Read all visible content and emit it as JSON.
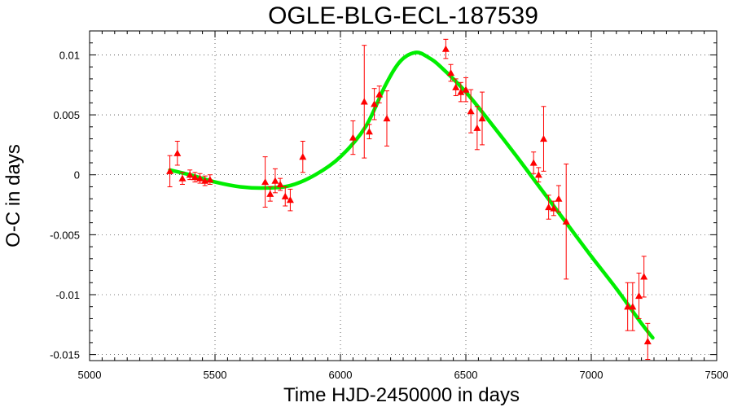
{
  "chart_data": {
    "type": "scatter",
    "title": "OGLE-BLG-ECL-187539",
    "xlabel": "Time HJD-2450000 in days",
    "ylabel": "O-C in days",
    "xlim": [
      5000,
      7500
    ],
    "ylim": [
      -0.0155,
      0.012
    ],
    "xticks": [
      5000,
      5500,
      6000,
      6500,
      7000,
      7500
    ],
    "xtick_labels": [
      "5000",
      "5500",
      "6000",
      "6500",
      "7000",
      "7500"
    ],
    "yticks": [
      0.01,
      0.005,
      0,
      -0.005,
      -0.01,
      -0.015
    ],
    "ytick_labels": [
      "0.01",
      "0.005",
      "0",
      "-0.005",
      "-0.01",
      "-0.015"
    ],
    "grid": true,
    "series": [
      {
        "kind": "observations",
        "color": "#ff0000",
        "marker": "triangle",
        "points": [
          {
            "x": 5320,
            "y": 0.0003,
            "err": 0.0013
          },
          {
            "x": 5350,
            "y": 0.0018,
            "err": 0.001
          },
          {
            "x": 5370,
            "y": -0.0003,
            "err": 0.0005
          },
          {
            "x": 5400,
            "y": 0.0,
            "err": 0.0004
          },
          {
            "x": 5420,
            "y": -0.0002,
            "err": 0.0004
          },
          {
            "x": 5440,
            "y": -0.0003,
            "err": 0.0004
          },
          {
            "x": 5460,
            "y": -0.0005,
            "err": 0.0004
          },
          {
            "x": 5480,
            "y": -0.0004,
            "err": 0.0004
          },
          {
            "x": 5700,
            "y": -0.0006,
            "err": 0.0021
          },
          {
            "x": 5720,
            "y": -0.0016,
            "err": 0.0006
          },
          {
            "x": 5740,
            "y": -0.0005,
            "err": 0.001
          },
          {
            "x": 5760,
            "y": -0.0008,
            "err": 0.0005
          },
          {
            "x": 5780,
            "y": -0.0018,
            "err": 0.0008
          },
          {
            "x": 5800,
            "y": -0.0021,
            "err": 0.0009
          },
          {
            "x": 5850,
            "y": 0.0015,
            "err": 0.0013
          },
          {
            "x": 6050,
            "y": 0.0031,
            "err": 0.0014
          },
          {
            "x": 6095,
            "y": 0.0061,
            "err": 0.0047
          },
          {
            "x": 6115,
            "y": 0.0036,
            "err": 0.0006
          },
          {
            "x": 6135,
            "y": 0.0059,
            "err": 0.0013
          },
          {
            "x": 6155,
            "y": 0.0067,
            "err": 0.0007
          },
          {
            "x": 6185,
            "y": 0.0047,
            "err": 0.0023
          },
          {
            "x": 6420,
            "y": 0.0105,
            "err": 0.0008
          },
          {
            "x": 6440,
            "y": 0.0085,
            "err": 0.0007
          },
          {
            "x": 6460,
            "y": 0.0073,
            "err": 0.0007
          },
          {
            "x": 6480,
            "y": 0.0069,
            "err": 0.0008
          },
          {
            "x": 6500,
            "y": 0.0071,
            "err": 0.001
          },
          {
            "x": 6520,
            "y": 0.0053,
            "err": 0.0018
          },
          {
            "x": 6545,
            "y": 0.0039,
            "err": 0.0018
          },
          {
            "x": 6565,
            "y": 0.0047,
            "err": 0.0022
          },
          {
            "x": 6770,
            "y": 0.001,
            "err": 0.0009
          },
          {
            "x": 6790,
            "y": 0.0,
            "err": 0.0006
          },
          {
            "x": 6810,
            "y": 0.003,
            "err": 0.0027
          },
          {
            "x": 6830,
            "y": -0.0027,
            "err": 0.001
          },
          {
            "x": 6850,
            "y": -0.0028,
            "err": 0.0006
          },
          {
            "x": 6870,
            "y": -0.002,
            "err": 0.0011
          },
          {
            "x": 6900,
            "y": -0.0039,
            "err": 0.0048
          },
          {
            "x": 7145,
            "y": -0.011,
            "err": 0.002
          },
          {
            "x": 7165,
            "y": -0.011,
            "err": 0.002
          },
          {
            "x": 7190,
            "y": -0.0101,
            "err": 0.0019
          },
          {
            "x": 7210,
            "y": -0.0085,
            "err": 0.0017
          },
          {
            "x": 7225,
            "y": -0.0139,
            "err": 0.0015
          }
        ]
      },
      {
        "kind": "fit",
        "color": "#00ee00",
        "points": [
          {
            "x": 5320,
            "y": 0.0004
          },
          {
            "x": 5400,
            "y": 0.0
          },
          {
            "x": 5500,
            "y": -0.0006
          },
          {
            "x": 5600,
            "y": -0.001
          },
          {
            "x": 5700,
            "y": -0.0011
          },
          {
            "x": 5800,
            "y": -0.0009
          },
          {
            "x": 5900,
            "y": 0.0
          },
          {
            "x": 6000,
            "y": 0.0015
          },
          {
            "x": 6100,
            "y": 0.004
          },
          {
            "x": 6180,
            "y": 0.0075
          },
          {
            "x": 6240,
            "y": 0.0095
          },
          {
            "x": 6300,
            "y": 0.0102
          },
          {
            "x": 6350,
            "y": 0.0098
          },
          {
            "x": 6400,
            "y": 0.009
          },
          {
            "x": 6500,
            "y": 0.0069
          },
          {
            "x": 6600,
            "y": 0.0043
          },
          {
            "x": 6700,
            "y": 0.0016
          },
          {
            "x": 6800,
            "y": -0.0012
          },
          {
            "x": 6900,
            "y": -0.004
          },
          {
            "x": 7000,
            "y": -0.0068
          },
          {
            "x": 7100,
            "y": -0.0095
          },
          {
            "x": 7200,
            "y": -0.0124
          },
          {
            "x": 7245,
            "y": -0.0136
          }
        ]
      }
    ]
  }
}
